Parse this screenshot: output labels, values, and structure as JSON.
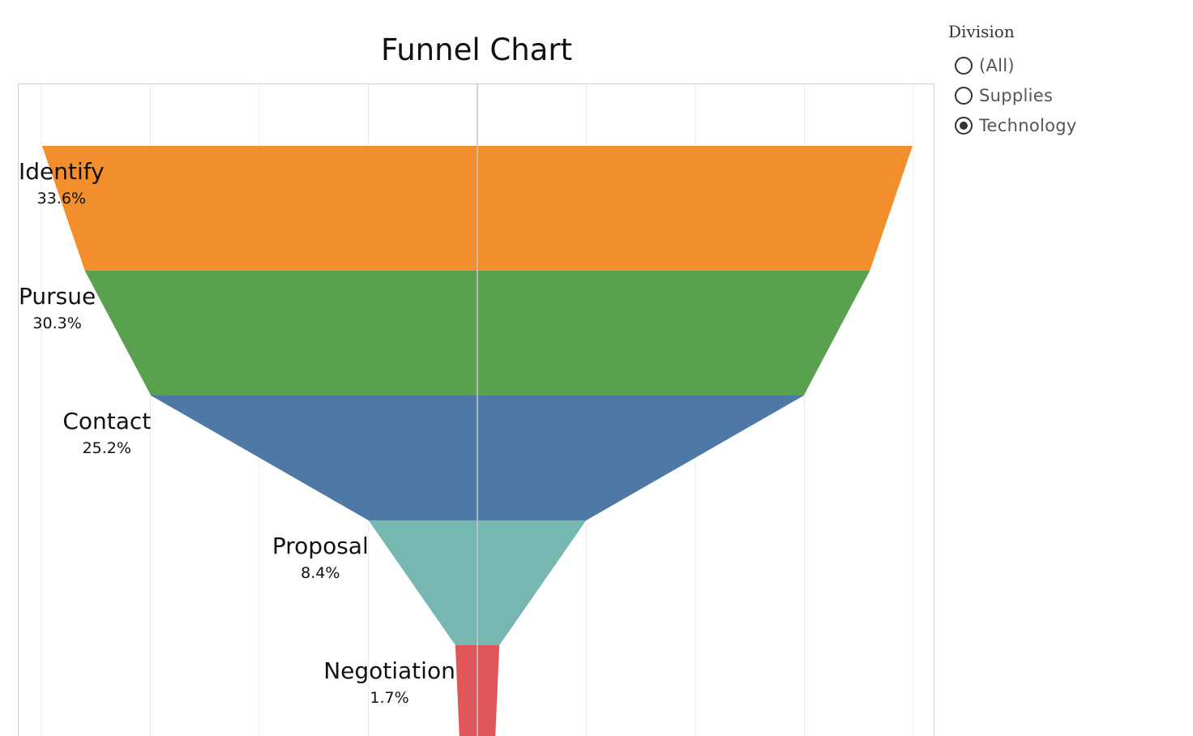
{
  "chart_data": {
    "type": "funnel",
    "title": "Funnel Chart",
    "stages": [
      {
        "name": "Identify",
        "value": 33.6,
        "label": "33.6%",
        "color": "#F28E2B"
      },
      {
        "name": "Pursue",
        "value": 30.3,
        "label": "30.3%",
        "color": "#59A14F"
      },
      {
        "name": "Contact",
        "value": 25.2,
        "label": "25.2%",
        "color": "#4E79A7"
      },
      {
        "name": "Proposal",
        "value": 8.4,
        "label": "8.4%",
        "color": "#76B7B2"
      },
      {
        "name": "Negotiation",
        "value": 1.7,
        "label": "1.7%",
        "color": "#E15759"
      }
    ],
    "grid": true,
    "legend": "right"
  },
  "filter": {
    "title": "Division",
    "options": [
      {
        "label": "(All)",
        "selected": false
      },
      {
        "label": "Supplies",
        "selected": false
      },
      {
        "label": "Technology",
        "selected": true
      }
    ]
  }
}
